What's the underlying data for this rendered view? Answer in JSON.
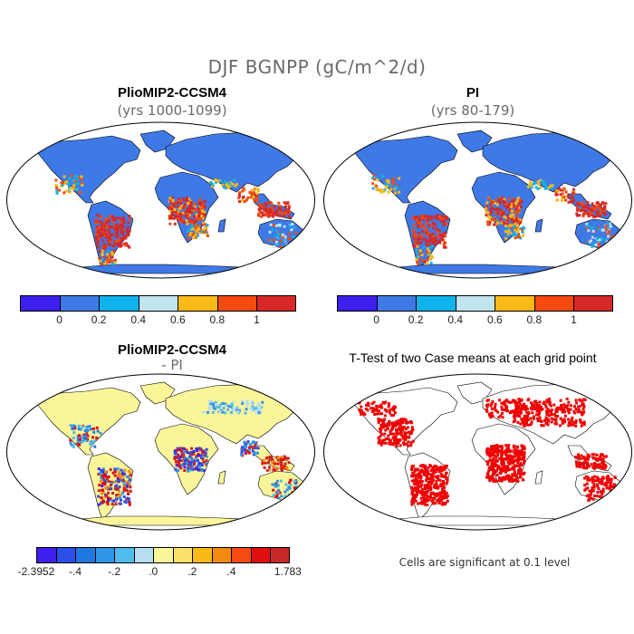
{
  "figure": {
    "title": "DJF BGNPP (gC/m^2/d)"
  },
  "panels": [
    {
      "id": "pliomip2",
      "title": "PlioMIP2-CCSM4",
      "subtitle": "(yrs 1000-1099)",
      "colorbar": {
        "colors": [
          "#3d1fee",
          "#3f79e6",
          "#0fb2ea",
          "#c2e3f0",
          "#fbb918",
          "#f54a10",
          "#d62828"
        ],
        "labels": [
          "0",
          "0.2",
          "0.4",
          "0.6",
          "0.8",
          "1"
        ]
      }
    },
    {
      "id": "pi",
      "title": "PI",
      "subtitle": "(yrs 80-179)",
      "colorbar": {
        "colors": [
          "#3d1fee",
          "#3f79e6",
          "#0fb2ea",
          "#c2e3f0",
          "#fbb918",
          "#f54a10",
          "#d62828"
        ],
        "labels": [
          "0",
          "0.2",
          "0.4",
          "0.6",
          "0.8",
          "1"
        ]
      }
    },
    {
      "id": "diff",
      "title": "PlioMIP2-CCSM4",
      "subtitle": "- PI",
      "colorbar": {
        "colors": [
          "#3d1fee",
          "#2a4ee6",
          "#1f78e0",
          "#2f95e8",
          "#4fbcee",
          "#b7def0",
          "#fbf59a",
          "#fbe06a",
          "#fbb918",
          "#f58a10",
          "#f54a10",
          "#e01010",
          "#c62828"
        ],
        "labels": [
          "-2.3952",
          "-.4",
          "-.2",
          ".0",
          ".2",
          ".4",
          "1.783"
        ]
      }
    },
    {
      "id": "ttest",
      "title": "T-Test of two Case means at each grid point",
      "note": "Cells are significant at 0.1 level",
      "colors": [
        "#ee0000"
      ]
    }
  ]
}
